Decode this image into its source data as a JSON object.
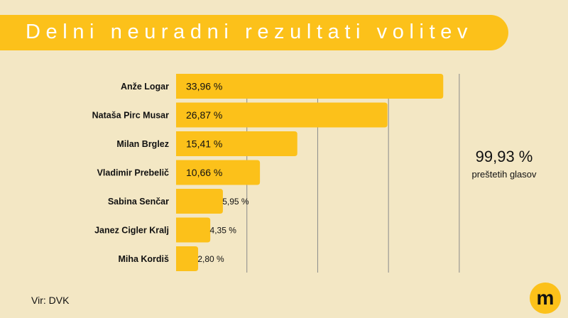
{
  "title": "Delni neuradni rezultati volitev",
  "source": "Vir: DVK",
  "summary": {
    "value": "99,93 %",
    "label": "preštetih glasov"
  },
  "colors": {
    "background": "#f3e7c4",
    "accent": "#fcc11a",
    "text": "#111111",
    "grid": "#8a8a8a"
  },
  "logo": {
    "icon": "m-logo-icon",
    "letter": "m"
  },
  "chart_data": {
    "type": "bar",
    "orientation": "horizontal",
    "categories": [
      "Anže Logar",
      "Nataša Pirc Musar",
      "Milan Brglez",
      "Vladimir Prebelič",
      "Sabina Senčar",
      "Janez Cigler Kralj",
      "Miha Kordiš"
    ],
    "values": [
      33.96,
      26.87,
      15.41,
      10.66,
      5.95,
      4.35,
      2.8
    ],
    "value_labels": [
      "33,96 %",
      "26,87 %",
      "15,41 %",
      "10,66 %",
      "5,95 %",
      "4,35 %",
      "2,80 %"
    ],
    "xlim": [
      0,
      36
    ],
    "gridlines": [
      9,
      18,
      27,
      36
    ],
    "grid": true,
    "legend": "none"
  }
}
